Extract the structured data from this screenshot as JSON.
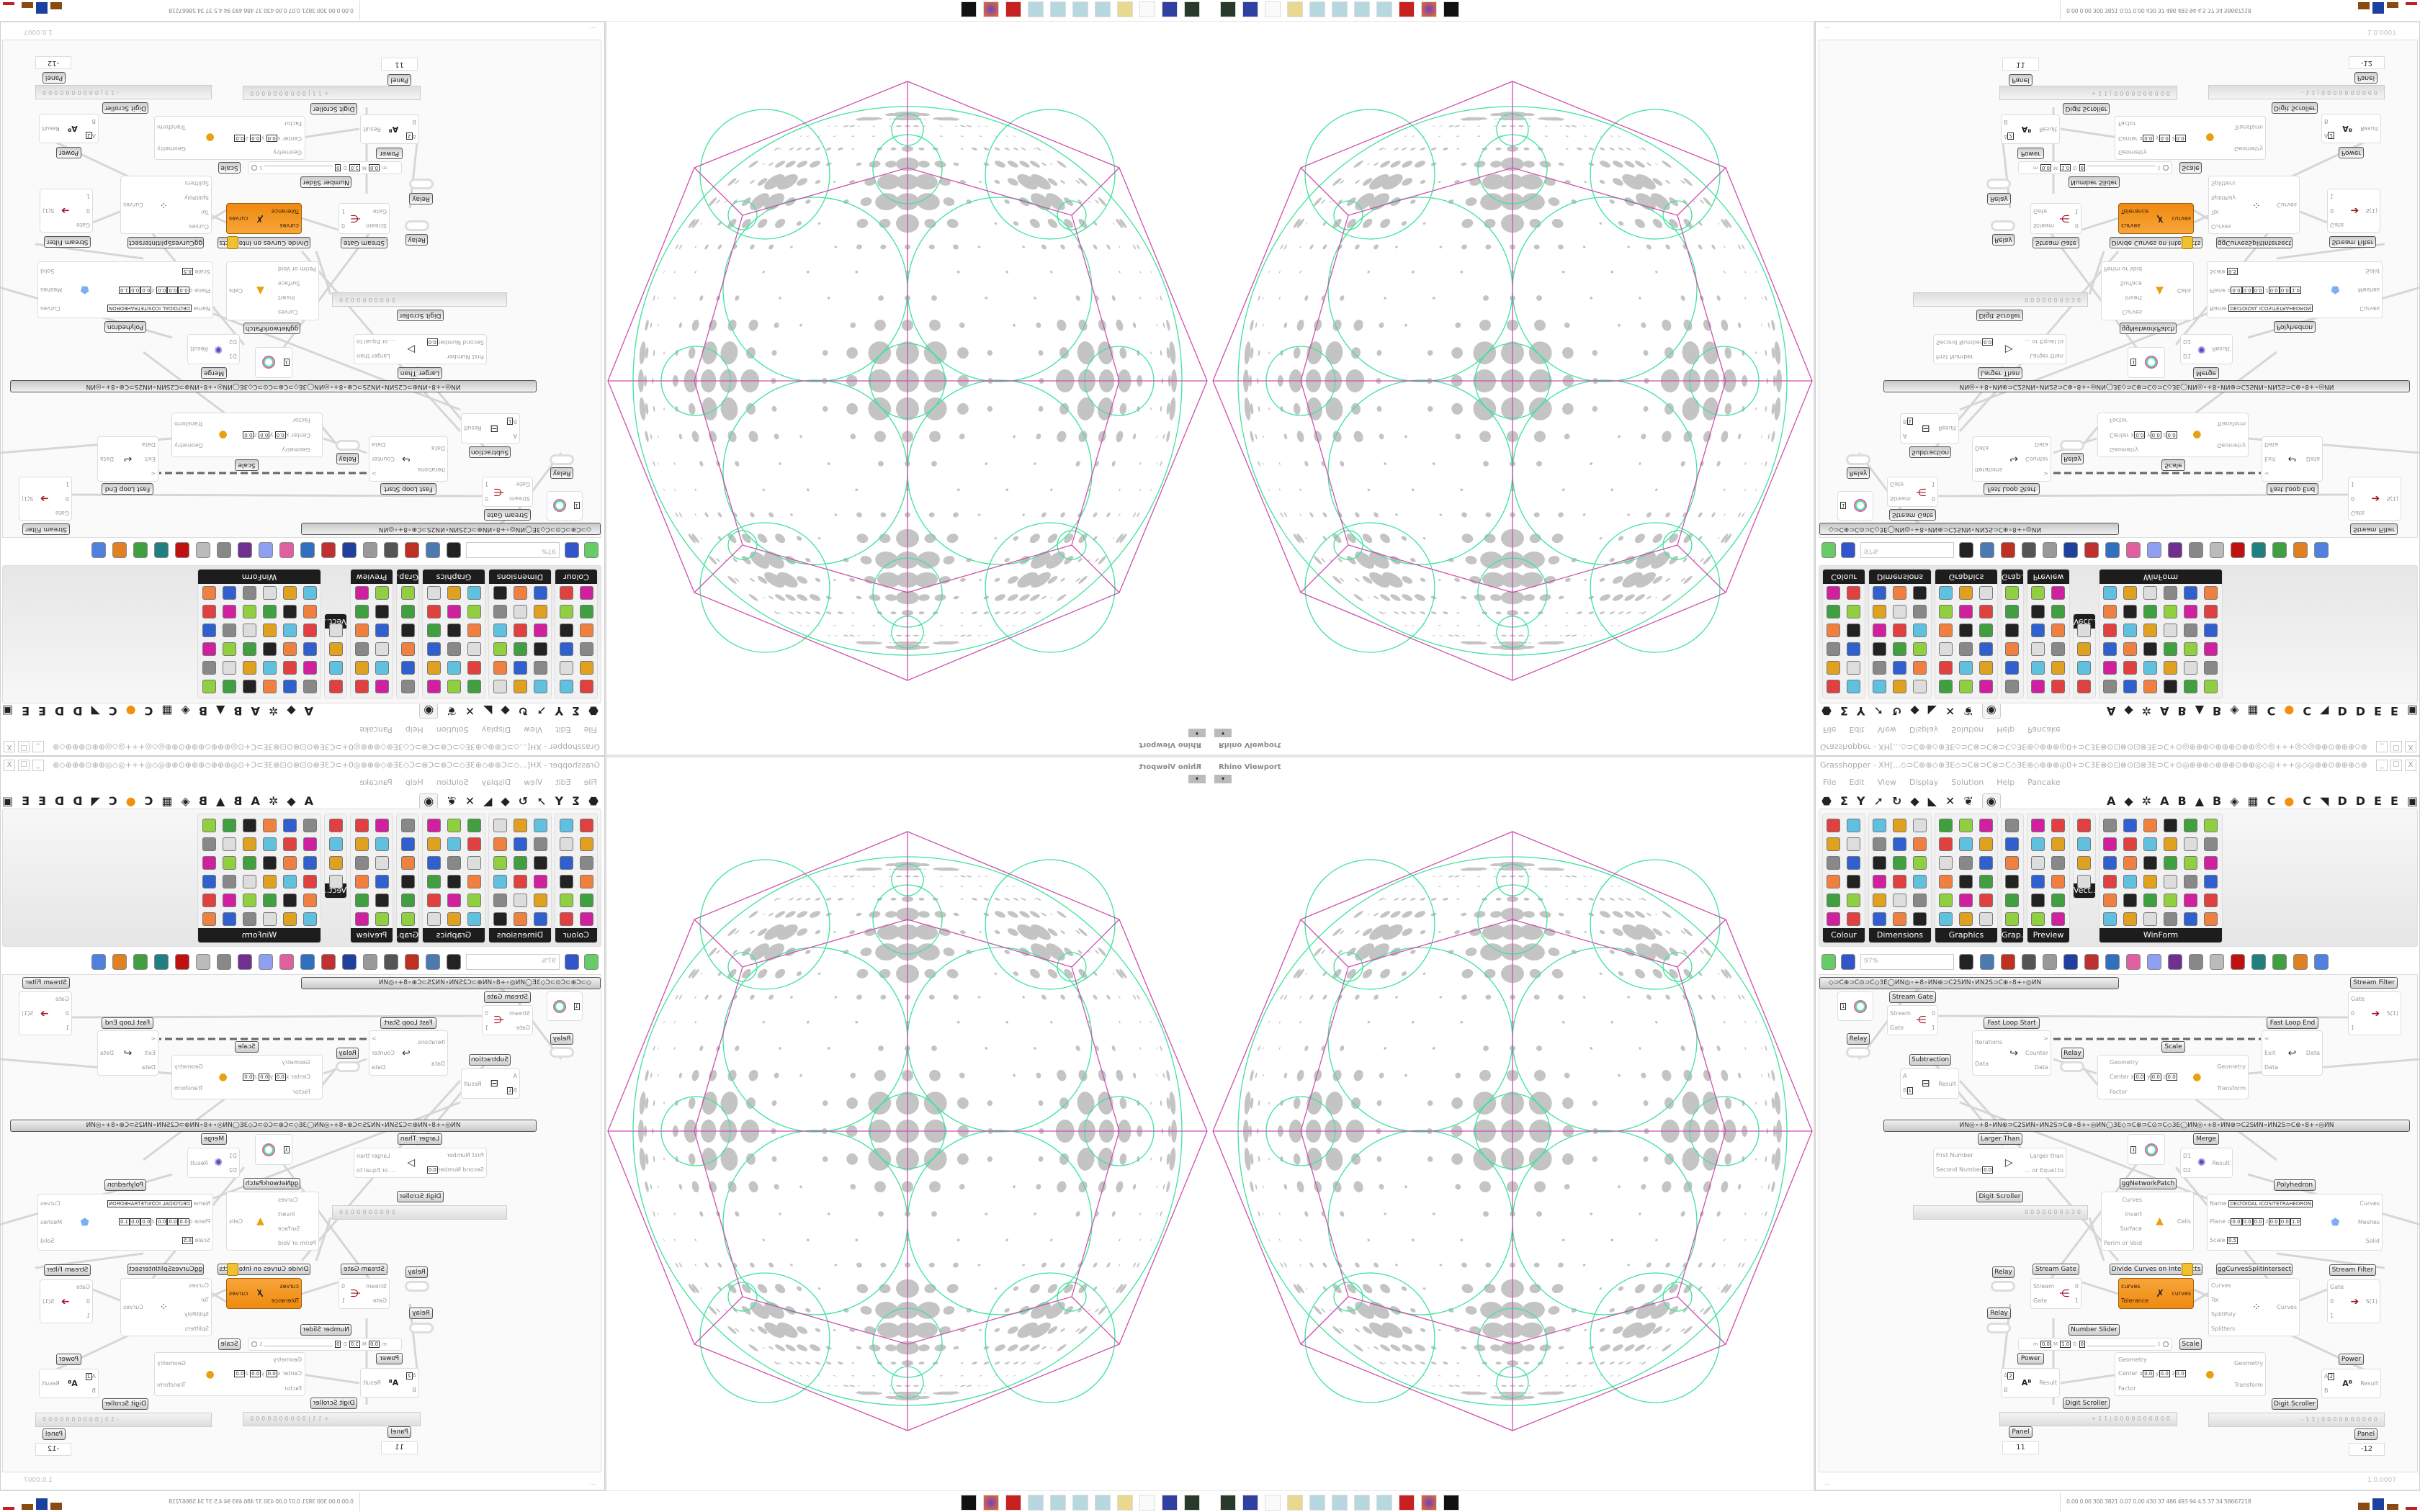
{
  "window": {
    "title": "Grasshopper - XH[...◇⊃C⊕⊕◇⊕3E◇⊃C⊗⊃C⊗⊃C◇3E⊕◇⊕⊕⊕◎0+⊃C3E⊗⊙⊡⊗⊙⊡⊗3E⊃C+⊙◎⊕⊕⊕◇⊕⊕⊕⊙⊕⊕◎◇◎+++◎◇◎⊕⊕⊙⊕⊕⊕◇⊕⊕⊕◎0+⊃C3E⊗⊙⊡...",
    "minimize": "_",
    "maximize": "☐",
    "close": "X"
  },
  "menu": [
    "File",
    "Edit",
    "View",
    "Display",
    "Solution",
    "Help",
    "Pancake"
  ],
  "tab_icons": [
    "⬣",
    "Σ",
    "Y",
    "➚",
    "↻",
    "◆",
    "◣",
    "✕",
    "❦",
    "◉"
  ],
  "tab_letters": [
    "A",
    "◆",
    "✲",
    "A",
    "B",
    "▲",
    "B",
    "◈",
    "▦",
    "C",
    "●",
    "C",
    "◥",
    "D",
    "D",
    "E",
    "E",
    "▣"
  ],
  "ribbon_panels": [
    "Colour",
    "Dimensions",
    "Graphics",
    "Grap..",
    "Preview",
    "Vect..",
    "WinForm"
  ],
  "toolbar": {
    "zoom": "97%"
  },
  "viewport": {
    "label": "Rhino Viewport",
    "dropdown": "▾"
  },
  "colors": {
    "accent_orange": "#f0900f",
    "polyhedron_lines": "#d04fb0",
    "network_curves": "#3ee39b",
    "holes": "#c4c4c4"
  },
  "group_text": "◇⊃C⊕⊃C⊙⊃C◇3E◯ИN◎∘+8∘ИN⊕⊃C2SИN∘ИN2S⊃C⊕∘8+∘◎ИN",
  "group_text_2": "ИN◎∘+8∘ИN⊕⊃C2SИN∘ИN2S⊃C⊕∘8+∘◎ИN◯3E◇⊃C⊕⊃C⊙⊃C◇3E◯ИN◎∘+8∘ИN⊕⊃C2SИN∘ИN2S⊃C⊕∘8+∘◎ИN",
  "nodes": {
    "stream_filter": {
      "title": "Stream Filter",
      "inputs": [
        "Gate",
        "0",
        "1"
      ],
      "outputs": [
        "S(1)"
      ]
    },
    "stream_gate": {
      "title": "Stream Gate",
      "inputs": [
        "Stream",
        "Gate"
      ],
      "outputs": [
        "0",
        "1"
      ]
    },
    "circle_param": {
      "value": "1"
    },
    "relay": {
      "title": "Relay"
    },
    "fast_loop_start": {
      "title": "Fast Loop Start",
      "inputs": [
        "Iterations",
        "Data"
      ],
      "outputs": [
        ">",
        "Counter",
        "Data"
      ]
    },
    "fast_loop_end": {
      "title": "Fast Loop End",
      "inputs": [
        "<",
        "Exit",
        "Data"
      ],
      "outputs": [
        "Data"
      ]
    },
    "scale": {
      "title": "Scale",
      "inputs": [
        "Geometry",
        "Center",
        "Factor"
      ],
      "outputs": [
        "Geometry",
        "Transform"
      ],
      "center": [
        "0.0",
        "0.0",
        "0.0"
      ]
    },
    "subtraction": {
      "title": "Subtraction",
      "inputs": [
        "A",
        "B"
      ],
      "b_value": "1",
      "outputs": [
        "Result"
      ]
    },
    "larger_than": {
      "title": "Larger Than",
      "inputs": [
        "First Number",
        "Second Number"
      ],
      "second_value": "0.0",
      "outputs": [
        "Larger than",
        "... or Equal to"
      ]
    },
    "merge": {
      "title": "Merge",
      "inputs": [
        "D1",
        "D2"
      ],
      "outputs": [
        "Result"
      ]
    },
    "network_patch": {
      "title": "ggNetworkPatch",
      "inputs": [
        "Curves",
        "Invert",
        "Surface",
        "Perim or Void"
      ],
      "outputs": [
        "Cells"
      ]
    },
    "polyhedron": {
      "title": "Polyhedron",
      "inputs": [
        "Name",
        "Plane",
        "Scale"
      ],
      "name": "DELTOIDAL ICOSITETRAHEDRON",
      "origin": [
        "0.0",
        "0.0",
        "0.0"
      ],
      "z": [
        "0.0",
        "0.0",
        "1.0"
      ],
      "scale": "0.5",
      "outputs": [
        "Curves",
        "Meshes",
        "Solid"
      ]
    },
    "digit_scroller": {
      "title": "Digit Scroller",
      "values": [
        "0000000030",
        "+11|0000000000",
        "-12|0000000000"
      ]
    },
    "divide_curves": {
      "title": "Divide Curves on Intersects",
      "inputs": [
        "curves",
        "Tolerance"
      ],
      "outputs": [
        "curves"
      ]
    },
    "curves_split": {
      "title": "ggCurvesSplitIntersect",
      "inputs": [
        "Curves",
        "Tol",
        "SplitPoly",
        "Splitters"
      ],
      "outputs": [
        "Curves"
      ]
    },
    "number_slider": {
      "title": "Number Slider",
      "min": "0.0",
      "max": "1.0",
      "decimals": "0",
      "value": "1"
    },
    "power": {
      "title": "Power",
      "inputs": [
        "A",
        "B"
      ],
      "a_value": "2",
      "outputs": [
        "Result"
      ]
    },
    "panel": {
      "title": "Panel",
      "values": [
        "11",
        "-12"
      ]
    }
  },
  "status": {
    "left": "...",
    "version": "1.0.0007"
  },
  "metrics": "0.00 0.00 300 3821 0.07 0.00 430 37 486 493 94 4.5 37 34 58667218"
}
